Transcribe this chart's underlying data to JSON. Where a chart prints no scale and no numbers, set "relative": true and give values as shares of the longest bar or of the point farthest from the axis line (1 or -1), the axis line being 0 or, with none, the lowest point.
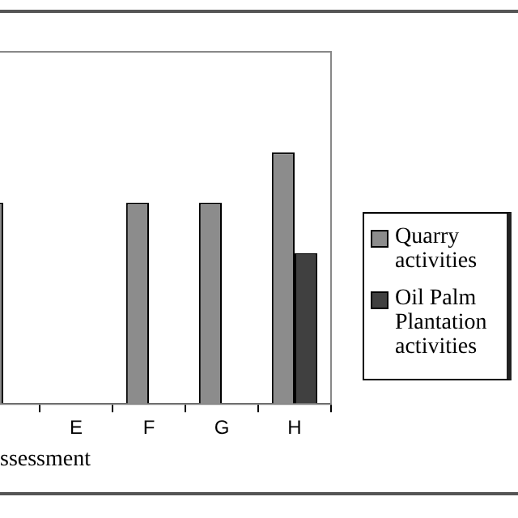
{
  "chart_data": {
    "type": "bar",
    "relative": true,
    "xlabel": "ssessment",
    "categories": [
      null,
      "E",
      "F",
      "G",
      "H"
    ],
    "series": [
      {
        "name": "Quarry activities",
        "color": "#8c8c8c",
        "values": [
          0.8,
          0,
          0.8,
          0.8,
          1
        ]
      },
      {
        "name": "Oil Palm Plantation activities",
        "color": "#404040",
        "values": [
          0,
          0,
          0,
          0,
          0.6
        ]
      }
    ],
    "legend": "right",
    "grid": false
  }
}
